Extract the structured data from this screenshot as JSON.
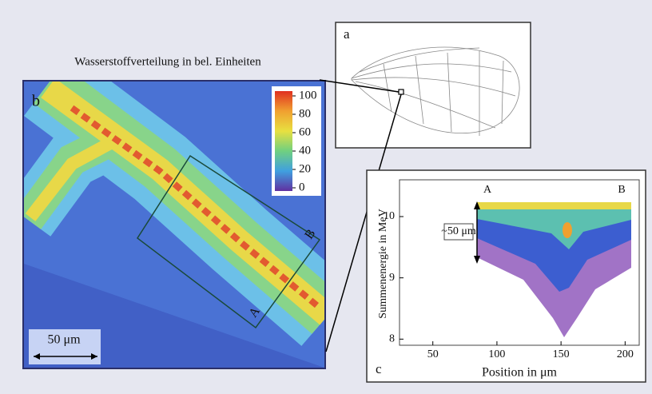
{
  "caption": "Wasserstoffverteilung in bel. Einheiten",
  "panels": {
    "a": {
      "label": "a"
    },
    "b": {
      "label": "b",
      "colorbar_ticks": [
        100,
        80,
        60,
        40,
        20,
        0
      ],
      "scale_bar": "50 μm",
      "marker_a": "A",
      "marker_b": "B"
    },
    "c": {
      "label": "c",
      "xlabel": "Position in μm",
      "ylabel": "Summenenergie in MeV",
      "xlim": [
        24,
        211
      ],
      "ylim": [
        7.9,
        10.6
      ],
      "xticks": [
        50,
        100,
        150,
        200
      ],
      "yticks": [
        8,
        9,
        10
      ],
      "marker_a": "A",
      "marker_b": "B",
      "bracket": "~50 μm"
    }
  }
}
